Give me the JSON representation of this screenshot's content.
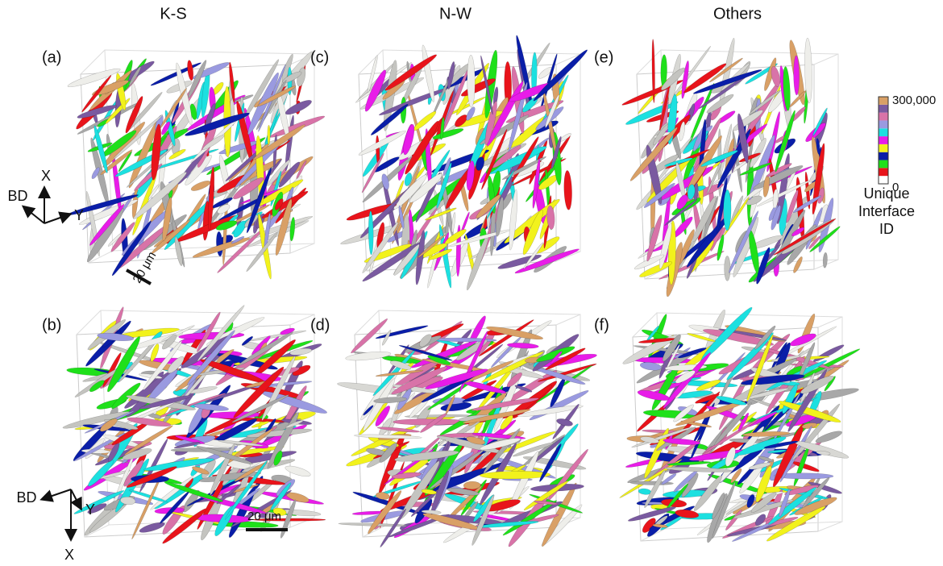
{
  "columns": [
    "K-S",
    "N-W",
    "Others"
  ],
  "panels": [
    "(a)",
    "(b)",
    "(c)",
    "(d)",
    "(e)",
    "(f)"
  ],
  "axes_top": {
    "x": "X",
    "bd": "BD",
    "y": "Y"
  },
  "axes_bottom": {
    "x": "X",
    "bd": "BD",
    "y": "Y"
  },
  "scale_bars": [
    "20 μm",
    "20 μm"
  ],
  "colorbar": {
    "max_label": "300,000",
    "min_label": "0",
    "title": [
      "Unique",
      "Interface",
      "ID"
    ],
    "colors": [
      "#ffffff",
      "#e8141b",
      "#1fe01a",
      "#0a1ea8",
      "#f2f21c",
      "#e81ce8",
      "#1ce0e0",
      "#9a9ae0",
      "#d873a8",
      "#7a5aa0",
      "#d9a066"
    ]
  }
}
